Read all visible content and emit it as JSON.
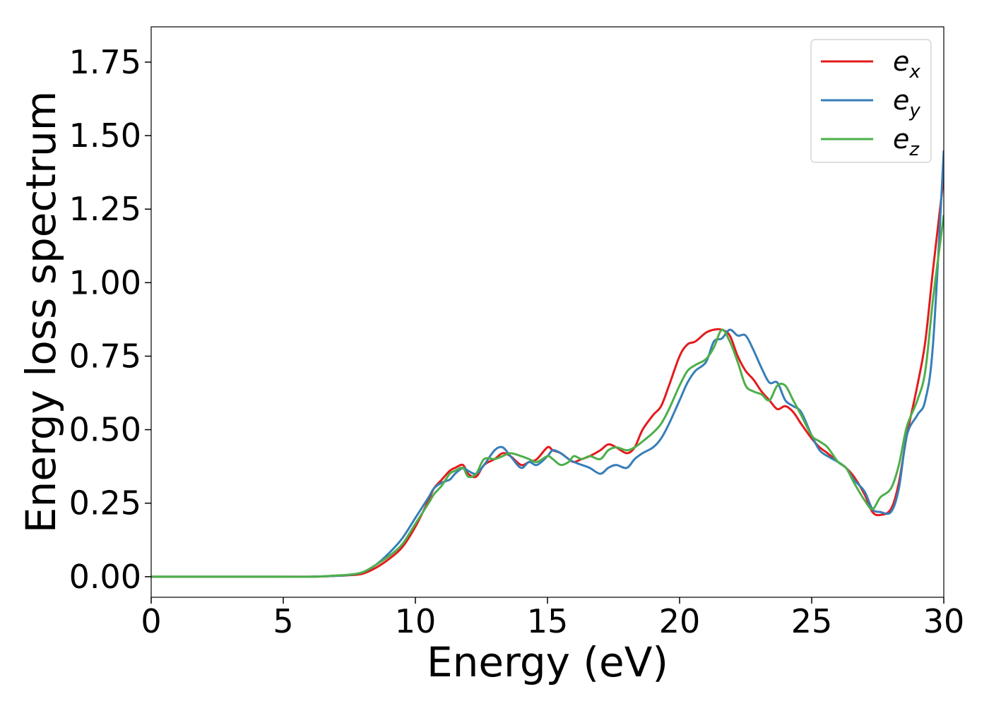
{
  "chart_data": {
    "type": "line",
    "title": "",
    "xlabel": "Energy (eV)",
    "ylabel": "Energy loss spectrum",
    "xlim": [
      0,
      30
    ],
    "ylim": [
      -0.07,
      1.87
    ],
    "xticks": [
      0,
      5,
      10,
      15,
      20,
      25,
      30
    ],
    "xtick_labels": [
      "0",
      "5",
      "10",
      "15",
      "20",
      "25",
      "30"
    ],
    "yticks": [
      0.0,
      0.25,
      0.5,
      0.75,
      1.0,
      1.25,
      1.5,
      1.75
    ],
    "ytick_labels": [
      "0.00",
      "0.25",
      "0.50",
      "0.75",
      "1.00",
      "1.25",
      "1.50",
      "1.75"
    ],
    "grid": false,
    "legend_position": "top-right",
    "series": [
      {
        "name": "e_x",
        "label_base": "e",
        "label_sub": "x",
        "color": "#e41a1c",
        "x": [
          0,
          2,
          4,
          6,
          7,
          7.5,
          8,
          8.5,
          9,
          9.5,
          10,
          10.5,
          10.7,
          11,
          11.3,
          11.5,
          11.8,
          12,
          12.3,
          12.6,
          13,
          13.3,
          13.6,
          14,
          14.3,
          14.6,
          15,
          15.2,
          15.5,
          15.8,
          16,
          16.3,
          16.6,
          17,
          17.3,
          17.6,
          18,
          18.3,
          18.6,
          19,
          19.3,
          19.6,
          20,
          20.3,
          20.6,
          21,
          21.3,
          21.6,
          21.9,
          22.2,
          22.5,
          22.8,
          23.1,
          23.4,
          23.7,
          24,
          24.3,
          24.6,
          25,
          25.3,
          25.6,
          26,
          26.3,
          26.6,
          27,
          27.3,
          27.6,
          28,
          28.3,
          28.6,
          29,
          29.3,
          29.6,
          30
        ],
        "y": [
          0,
          0,
          0,
          0,
          0.003,
          0.005,
          0.01,
          0.03,
          0.06,
          0.1,
          0.17,
          0.26,
          0.3,
          0.33,
          0.36,
          0.37,
          0.38,
          0.35,
          0.34,
          0.38,
          0.4,
          0.42,
          0.41,
          0.38,
          0.39,
          0.4,
          0.44,
          0.43,
          0.42,
          0.4,
          0.39,
          0.4,
          0.41,
          0.43,
          0.45,
          0.44,
          0.42,
          0.44,
          0.5,
          0.55,
          0.58,
          0.65,
          0.75,
          0.79,
          0.8,
          0.83,
          0.84,
          0.84,
          0.82,
          0.75,
          0.7,
          0.67,
          0.63,
          0.6,
          0.57,
          0.58,
          0.56,
          0.52,
          0.47,
          0.44,
          0.42,
          0.39,
          0.37,
          0.34,
          0.28,
          0.22,
          0.21,
          0.23,
          0.32,
          0.48,
          0.65,
          0.8,
          1.05,
          1.36
        ]
      },
      {
        "name": "e_y",
        "label_base": "e",
        "label_sub": "y",
        "color": "#377eb8",
        "x": [
          0,
          2,
          4,
          6,
          7,
          7.5,
          8,
          8.5,
          9,
          9.5,
          10,
          10.5,
          10.7,
          11,
          11.3,
          11.5,
          11.8,
          12,
          12.3,
          12.6,
          13,
          13.3,
          13.6,
          14,
          14.3,
          14.6,
          15,
          15.2,
          15.5,
          15.8,
          16,
          16.3,
          16.6,
          17,
          17.3,
          17.6,
          18,
          18.3,
          18.6,
          19,
          19.3,
          19.6,
          20,
          20.3,
          20.6,
          21,
          21.3,
          21.6,
          21.9,
          22.2,
          22.5,
          22.8,
          23.1,
          23.4,
          23.7,
          24,
          24.3,
          24.6,
          25,
          25.3,
          25.6,
          26,
          26.3,
          26.6,
          27,
          27.3,
          27.6,
          28,
          28.3,
          28.6,
          29,
          29.3,
          29.6,
          30
        ],
        "y": [
          0,
          0,
          0,
          0,
          0.003,
          0.006,
          0.015,
          0.04,
          0.08,
          0.13,
          0.2,
          0.27,
          0.3,
          0.32,
          0.33,
          0.35,
          0.37,
          0.36,
          0.35,
          0.38,
          0.43,
          0.44,
          0.41,
          0.37,
          0.39,
          0.38,
          0.41,
          0.43,
          0.42,
          0.4,
          0.39,
          0.38,
          0.37,
          0.35,
          0.37,
          0.38,
          0.37,
          0.4,
          0.42,
          0.44,
          0.47,
          0.52,
          0.6,
          0.66,
          0.7,
          0.73,
          0.8,
          0.81,
          0.84,
          0.82,
          0.82,
          0.77,
          0.71,
          0.66,
          0.66,
          0.6,
          0.58,
          0.56,
          0.48,
          0.43,
          0.41,
          0.39,
          0.37,
          0.33,
          0.29,
          0.23,
          0.22,
          0.22,
          0.3,
          0.48,
          0.55,
          0.6,
          0.8,
          1.45
        ]
      },
      {
        "name": "e_z",
        "label_base": "e",
        "label_sub": "z",
        "color": "#4daf4a",
        "x": [
          0,
          2,
          4,
          6,
          7,
          7.5,
          8,
          8.5,
          9,
          9.5,
          10,
          10.5,
          10.7,
          11,
          11.3,
          11.5,
          11.8,
          12,
          12.3,
          12.6,
          13,
          13.3,
          13.6,
          14,
          14.3,
          14.6,
          15,
          15.2,
          15.5,
          15.8,
          16,
          16.3,
          16.6,
          17,
          17.3,
          17.6,
          18,
          18.3,
          18.6,
          19,
          19.3,
          19.6,
          20,
          20.3,
          20.6,
          21,
          21.3,
          21.6,
          21.9,
          22.2,
          22.5,
          22.8,
          23.1,
          23.4,
          23.7,
          24,
          24.3,
          24.6,
          25,
          25.3,
          25.6,
          26,
          26.3,
          26.6,
          27,
          27.3,
          27.6,
          28,
          28.3,
          28.6,
          29,
          29.3,
          29.6,
          30
        ],
        "y": [
          0,
          0,
          0,
          0,
          0.004,
          0.007,
          0.015,
          0.04,
          0.07,
          0.11,
          0.18,
          0.25,
          0.28,
          0.31,
          0.35,
          0.36,
          0.37,
          0.34,
          0.35,
          0.4,
          0.4,
          0.41,
          0.42,
          0.41,
          0.4,
          0.39,
          0.41,
          0.4,
          0.38,
          0.39,
          0.41,
          0.4,
          0.41,
          0.4,
          0.43,
          0.44,
          0.43,
          0.44,
          0.46,
          0.49,
          0.52,
          0.57,
          0.65,
          0.7,
          0.72,
          0.74,
          0.78,
          0.84,
          0.8,
          0.73,
          0.65,
          0.63,
          0.62,
          0.6,
          0.65,
          0.65,
          0.6,
          0.55,
          0.48,
          0.46,
          0.44,
          0.39,
          0.37,
          0.32,
          0.26,
          0.23,
          0.27,
          0.3,
          0.38,
          0.51,
          0.6,
          0.7,
          0.95,
          1.23
        ]
      }
    ]
  }
}
